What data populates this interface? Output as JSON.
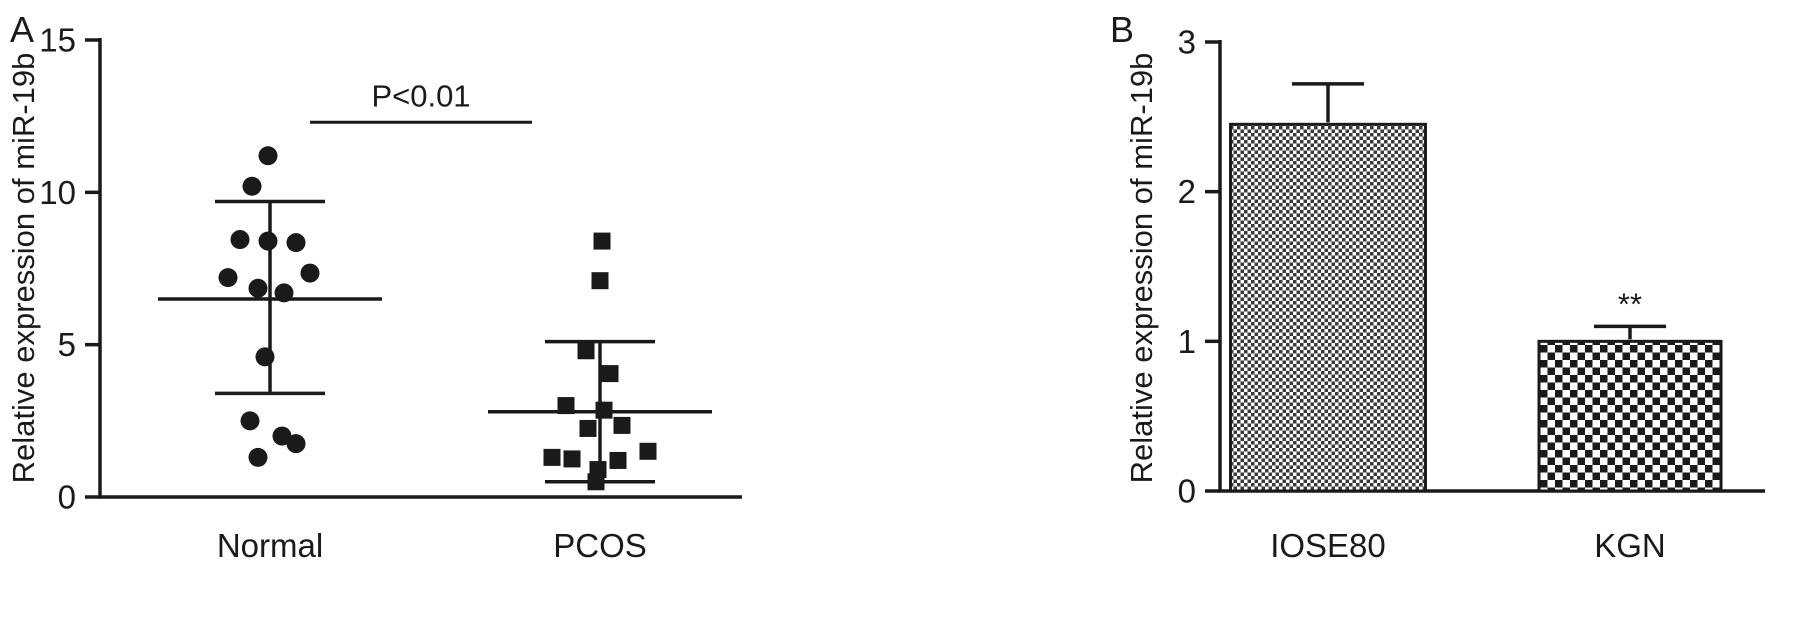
{
  "figure": {
    "background": "#ffffff",
    "ink": "#1a1a1a"
  },
  "chart_data": [
    {
      "type": "scatter",
      "panel": "A",
      "title": "",
      "xlabel": "",
      "ylabel": "Relative expression of miR-19b",
      "ylim": [
        0,
        15
      ],
      "yticks": [
        0,
        5,
        10,
        15
      ],
      "grid": false,
      "categories": [
        "Normal",
        "PCOS"
      ],
      "significance": {
        "text": "P<0.01",
        "between": [
          "Normal",
          "PCOS"
        ],
        "y": 12.3
      },
      "series": [
        {
          "name": "Normal",
          "marker": "circle",
          "mean": 6.5,
          "whisker_low": 3.4,
          "whisker_high": 9.7,
          "points": [
            {
              "dx": -2,
              "y": 11.2
            },
            {
              "dx": -18,
              "y": 10.2
            },
            {
              "dx": -30,
              "y": 8.45
            },
            {
              "dx": -2,
              "y": 8.4
            },
            {
              "dx": 26,
              "y": 8.35
            },
            {
              "dx": -42,
              "y": 7.2
            },
            {
              "dx": 40,
              "y": 7.35
            },
            {
              "dx": -12,
              "y": 6.85
            },
            {
              "dx": 14,
              "y": 6.7
            },
            {
              "dx": -5,
              "y": 4.6
            },
            {
              "dx": -20,
              "y": 2.5
            },
            {
              "dx": 12,
              "y": 2.0
            },
            {
              "dx": 26,
              "y": 1.75
            },
            {
              "dx": -12,
              "y": 1.3
            }
          ]
        },
        {
          "name": "PCOS",
          "marker": "square",
          "mean": 2.8,
          "whisker_low": 0.5,
          "whisker_high": 5.1,
          "points": [
            {
              "dx": 2,
              "y": 8.4
            },
            {
              "dx": 0,
              "y": 7.1
            },
            {
              "dx": -14,
              "y": 4.8
            },
            {
              "dx": 10,
              "y": 4.05
            },
            {
              "dx": -34,
              "y": 3.0
            },
            {
              "dx": 4,
              "y": 2.85
            },
            {
              "dx": 22,
              "y": 2.35
            },
            {
              "dx": -12,
              "y": 2.25
            },
            {
              "dx": 48,
              "y": 1.5
            },
            {
              "dx": -48,
              "y": 1.3
            },
            {
              "dx": -28,
              "y": 1.25
            },
            {
              "dx": 18,
              "y": 1.2
            },
            {
              "dx": -2,
              "y": 0.9
            },
            {
              "dx": -4,
              "y": 0.5
            }
          ]
        }
      ]
    },
    {
      "type": "bar",
      "panel": "B",
      "title": "",
      "xlabel": "",
      "ylabel": "Relative expression of miR-19b",
      "ylim": [
        0,
        3
      ],
      "yticks": [
        0,
        1,
        2,
        3
      ],
      "grid": false,
      "categories": [
        "IOSE80",
        "KGN"
      ],
      "values": [
        2.45,
        1.0
      ],
      "errors_plus": [
        0.27,
        0.1
      ],
      "annotations": [
        "",
        "**"
      ],
      "fill_patterns": [
        "checker-fine",
        "checker-coarse"
      ]
    }
  ]
}
